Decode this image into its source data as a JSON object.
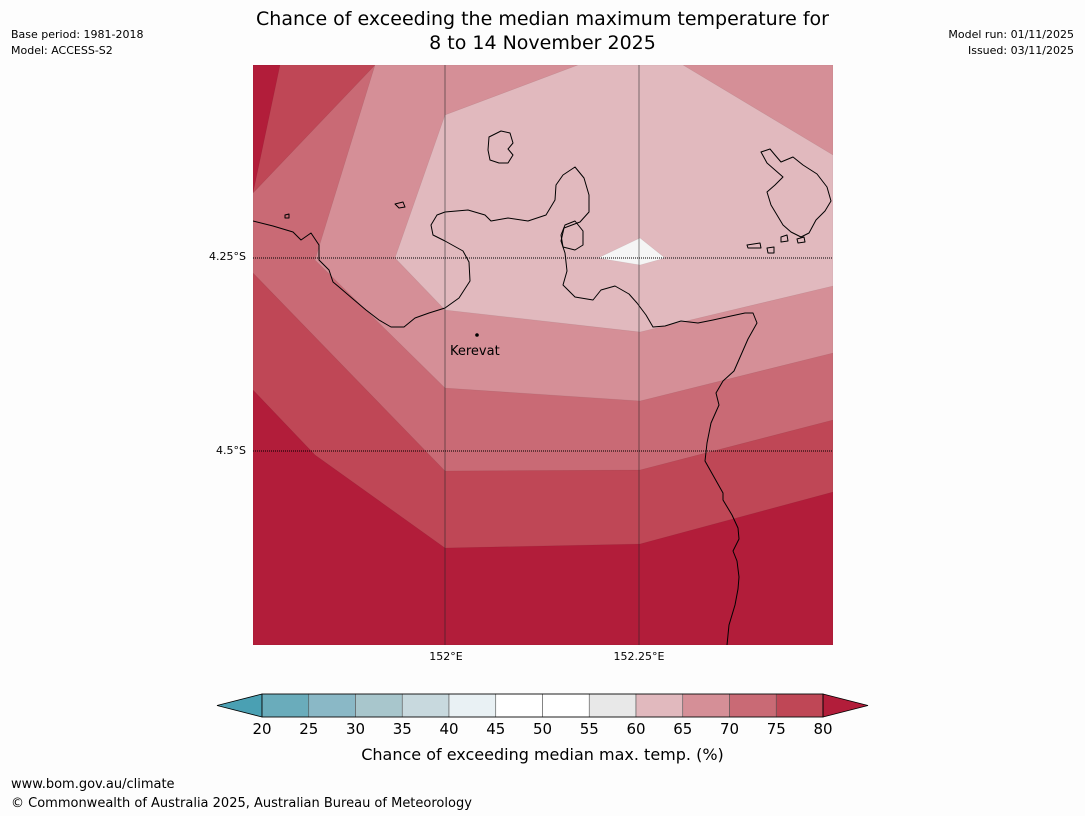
{
  "title": {
    "line1": "Chance of exceeding the median maximum temperature for",
    "line2": "8 to 14 November 2025"
  },
  "meta": {
    "base_period": "Base period: 1981-2018",
    "model": "Model: ACCESS-S2",
    "model_run": "Model run: 01/11/2025",
    "issued": "Issued: 03/11/2025"
  },
  "map": {
    "place_label": "Kerevat",
    "latitudes": [
      "4.25°S",
      "4.5°S"
    ],
    "longitudes": [
      "152°E",
      "152.25°E"
    ],
    "colors": {
      "c65": "#e1b9be",
      "c70": "#d58f97",
      "c75": "#c96a75",
      "c80": "#bf4756",
      "c80plus": "#b21d3a",
      "white": "#f5f5f5"
    }
  },
  "colorbar": {
    "ticks": [
      "20",
      "25",
      "30",
      "35",
      "40",
      "45",
      "50",
      "55",
      "60",
      "65",
      "70",
      "75",
      "80"
    ],
    "colors": [
      "#6aacbb",
      "#8ab8c6",
      "#a8c6cc",
      "#c8d9de",
      "#e9f1f4",
      "#ffffff",
      "#ffffff",
      "#e8e8e8",
      "#e1b9be",
      "#d58f97",
      "#c96a75",
      "#bf4756"
    ],
    "low_color": "#4aa0b3",
    "high_color": "#b21d3a",
    "label": "Chance of exceeding median max. temp. (%)"
  },
  "footer": {
    "url": "www.bom.gov.au/climate",
    "copyright": "© Commonwealth of Australia 2025, Australian Bureau of Meteorology"
  }
}
